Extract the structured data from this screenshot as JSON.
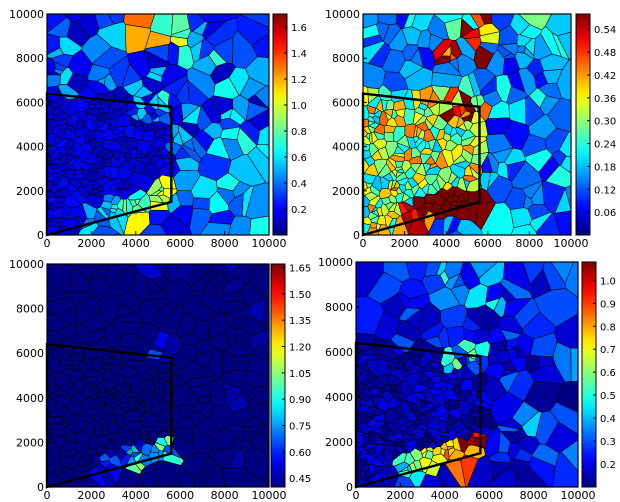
{
  "chart_data": [
    {
      "type": "heatmap",
      "subtype": "voronoi-mesh",
      "x_ticks": [
        "0",
        "2000",
        "4000",
        "6000",
        "8000",
        "10000"
      ],
      "y_ticks": [
        "0",
        "2000",
        "4000",
        "6000",
        "8000",
        "10000"
      ],
      "xlim": [
        0,
        10000
      ],
      "ylim": [
        0,
        10000
      ],
      "colormap": "jet",
      "colorbar_range": [
        0.0,
        1.7
      ],
      "colorbar_ticks": [
        "0.2",
        "0.4",
        "0.6",
        "0.8",
        "1.0",
        "1.2",
        "1.4",
        "1.6"
      ],
      "colorbar_tick_values": [
        0.2,
        0.4,
        0.6,
        0.8,
        1.0,
        1.2,
        1.4,
        1.6
      ],
      "field": {
        "base": 0.7,
        "wedge": 0.15,
        "streak": 0.9,
        "topHot": 0.9,
        "rightHot": 0.4,
        "noise": 0.4
      },
      "seed": 11
    },
    {
      "type": "heatmap",
      "subtype": "voronoi-mesh",
      "x_ticks": [
        "0",
        "2000",
        "4000",
        "6000",
        "8000",
        "10000"
      ],
      "y_ticks": [
        "0",
        "2000",
        "4000",
        "6000",
        "8000",
        "10000"
      ],
      "xlim": [
        0,
        10000
      ],
      "ylim": [
        0,
        10000
      ],
      "colormap": "jet",
      "colorbar_range": [
        0.0,
        0.58
      ],
      "colorbar_ticks": [
        "0.06",
        "0.12",
        "0.18",
        "0.24",
        "0.30",
        "0.36",
        "0.42",
        "0.48",
        "0.54"
      ],
      "colorbar_tick_values": [
        0.06,
        0.12,
        0.18,
        0.24,
        0.3,
        0.36,
        0.42,
        0.48,
        0.54
      ],
      "field": {
        "base": 0.3,
        "wedge": 0.3,
        "streak": 0.9,
        "topHot": 0.5,
        "rightHot": 0.1,
        "noise": 0.3
      },
      "seed": 23
    },
    {
      "type": "heatmap",
      "subtype": "voronoi-mesh",
      "x_ticks": [
        "0",
        "2000",
        "4000",
        "6000",
        "8000",
        "10000"
      ],
      "y_ticks": [
        "0",
        "2000",
        "4000",
        "6000",
        "8000",
        "10000"
      ],
      "xlim": [
        0,
        10000
      ],
      "ylim": [
        0,
        10000
      ],
      "colormap": "jet",
      "colorbar_range": [
        0.4,
        1.67
      ],
      "colorbar_ticks": [
        "0.45",
        "0.60",
        "0.75",
        "0.90",
        "1.05",
        "1.20",
        "1.35",
        "1.50",
        "1.65"
      ],
      "colorbar_tick_values": [
        0.45,
        0.6,
        0.75,
        0.9,
        1.05,
        1.2,
        1.35,
        1.5,
        1.65
      ],
      "field": {
        "base": 0.45,
        "wedge": 0.1,
        "streak": 1.0,
        "topHot": 0.2,
        "rightHot": 0.3,
        "noise": 0.3
      },
      "seed": 37
    },
    {
      "type": "heatmap",
      "subtype": "voronoi-mesh",
      "x_ticks": [
        "0",
        "2000",
        "4000",
        "6000",
        "8000",
        "10000"
      ],
      "y_ticks": [
        "0",
        "2000",
        "4000",
        "6000",
        "8000",
        "10000"
      ],
      "xlim": [
        0,
        10000
      ],
      "ylim": [
        0,
        10000
      ],
      "colormap": "jet",
      "colorbar_range": [
        0.1,
        1.08
      ],
      "colorbar_ticks": [
        "0.2",
        "0.3",
        "0.4",
        "0.5",
        "0.6",
        "0.7",
        "0.8",
        "0.9",
        "1.0"
      ],
      "colorbar_tick_values": [
        0.2,
        0.3,
        0.4,
        0.5,
        0.6,
        0.7,
        0.8,
        0.9,
        1.0
      ],
      "field": {
        "base": 0.45,
        "wedge": 0.15,
        "streak": 1.0,
        "topHot": 0.3,
        "rightHot": 0.2,
        "noise": 0.25
      },
      "seed": 53
    }
  ]
}
